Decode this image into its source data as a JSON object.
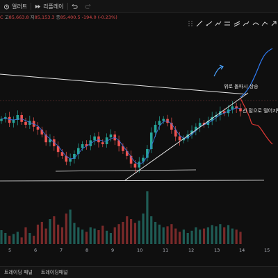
{
  "topbar": {
    "alert_label": "얼러트",
    "replay_label": "리플레이",
    "undo_icon": "undo-icon",
    "redo_icon": "redo-icon"
  },
  "ohlc": {
    "close_prefix": "C",
    "high_label": "고",
    "high_value": "85,663.8",
    "low_label": "저",
    "low_value": "85,153.3",
    "close_label": "종",
    "close_value": "85,400.5",
    "change_value": "-194.0 (-0.23%)"
  },
  "annotations": {
    "up_text": "위로 돌파시 상승",
    "down_text": "선 밑으로 떨어지면"
  },
  "xaxis": {
    "ticks": [
      "5",
      "6",
      "7",
      "8",
      "9",
      "10",
      "11",
      "12",
      "13",
      "14",
      "15"
    ]
  },
  "bottom": {
    "tab1": "트레이딩 패널",
    "tab2": "트레이딩패널"
  },
  "colors": {
    "up": "#26a69a",
    "down": "#ef5350",
    "blue_path": "#2f7cf6",
    "red_path": "#e53935",
    "background": "#0f0f0f"
  },
  "chart_data": {
    "type": "candlestick",
    "x_ticks": [
      "5",
      "6",
      "7",
      "8",
      "9",
      "10",
      "11",
      "12",
      "13",
      "14",
      "15"
    ],
    "price_closes": [
      0.66,
      0.68,
      0.62,
      0.65,
      0.7,
      0.63,
      0.6,
      0.64,
      0.58,
      0.55,
      0.5,
      0.42,
      0.45,
      0.38,
      0.32,
      0.28,
      0.22,
      0.25,
      0.3,
      0.36,
      0.4,
      0.38,
      0.44,
      0.48,
      0.42,
      0.4,
      0.47,
      0.5,
      0.44,
      0.38,
      0.33,
      0.28,
      0.2,
      0.16,
      0.22,
      0.26,
      0.35,
      0.52,
      0.6,
      0.64,
      0.66,
      0.62,
      0.55,
      0.48,
      0.44,
      0.46,
      0.5,
      0.54,
      0.58,
      0.62,
      0.6,
      0.64,
      0.68,
      0.7,
      0.74,
      0.72,
      0.76,
      0.79,
      0.77,
      0.74
    ],
    "volumes": [
      0.25,
      0.2,
      0.15,
      0.18,
      0.22,
      0.12,
      0.3,
      0.2,
      0.15,
      0.35,
      0.4,
      0.28,
      0.45,
      0.5,
      0.35,
      0.3,
      0.55,
      0.62,
      0.38,
      0.3,
      0.26,
      0.22,
      0.3,
      0.28,
      0.25,
      0.33,
      0.24,
      0.2,
      0.3,
      0.36,
      0.4,
      0.5,
      0.45,
      0.38,
      0.42,
      0.55,
      0.95,
      0.5,
      0.4,
      0.35,
      0.3,
      0.32,
      0.36,
      0.28,
      0.22,
      0.26,
      0.2,
      0.24,
      0.3,
      0.26,
      0.28,
      0.3,
      0.34,
      0.32,
      0.36,
      0.3,
      0.34,
      0.28,
      0.26,
      0.22
    ]
  }
}
